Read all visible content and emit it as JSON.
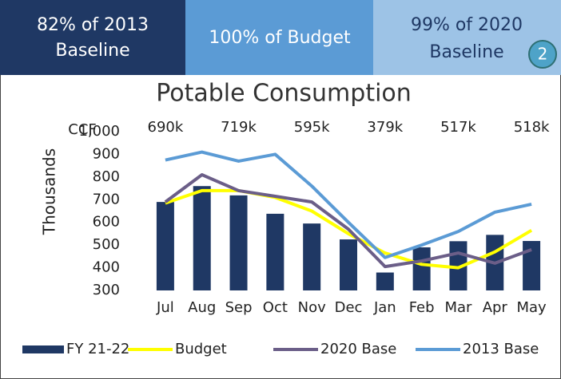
{
  "header": {
    "boxes": [
      {
        "lines": [
          "82% of 2013",
          "Baseline"
        ]
      },
      {
        "lines": [
          "100% of Budget"
        ]
      },
      {
        "lines": [
          "99% of 2020",
          "Baseline"
        ]
      }
    ],
    "badge": "2"
  },
  "chart_data": {
    "type": "bar_line",
    "title": "Potable Consumption",
    "y_unit": "CCF",
    "y_label": "Thousands",
    "categories": [
      "Jul",
      "Aug",
      "Sep",
      "Oct",
      "Nov",
      "Dec",
      "Jan",
      "Feb",
      "Mar",
      "Apr",
      "May"
    ],
    "ylim": [
      300,
      1000
    ],
    "yticks": [
      300,
      400,
      500,
      600,
      700,
      800,
      900,
      {
        "value": 1000,
        "label": "1,000"
      }
    ],
    "grid": false,
    "legend": "bottom",
    "series": [
      {
        "name": "FY 21-22",
        "kind": "bar",
        "color": "#1f3864",
        "values": [
          690,
          760,
          719,
          638,
          595,
          525,
          379,
          490,
          517,
          545,
          518
        ],
        "value_labels": [
          "690k",
          null,
          "719k",
          null,
          "595k",
          null,
          "379k",
          null,
          "517k",
          null,
          "518k"
        ]
      },
      {
        "name": "Budget",
        "kind": "line",
        "color": "#ffff00",
        "values": [
          685,
          740,
          740,
          710,
          650,
          550,
          465,
          415,
          400,
          470,
          565
        ]
      },
      {
        "name": "2020 Base",
        "kind": "line",
        "color": "#6b5e88",
        "values": [
          690,
          810,
          740,
          715,
          690,
          570,
          405,
          430,
          465,
          420,
          480
        ]
      },
      {
        "name": "2013 Base",
        "kind": "line",
        "color": "#5b9bd5",
        "values": [
          875,
          910,
          870,
          900,
          760,
          600,
          445,
          500,
          560,
          645,
          680
        ]
      }
    ]
  }
}
